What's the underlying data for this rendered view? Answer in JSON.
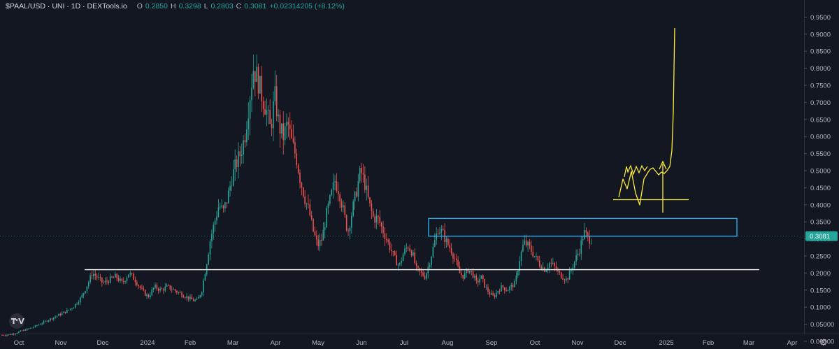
{
  "header": {
    "symbol": "$PAAL/USD · UNI · 1D · DEXTools.io",
    "o_label": "O",
    "o_value": "0.2850",
    "h_label": "H",
    "h_value": "0.3298",
    "l_label": "L",
    "l_value": "0.2803",
    "c_label": "C",
    "c_value": "0.3081",
    "change": "+0.02314205 (+8.12%)"
  },
  "icons": {
    "logo": "tradingview-logo-icon",
    "settings": "gear-icon"
  },
  "colors": {
    "background": "#131722",
    "up": "#26a69a",
    "down": "#ef5350",
    "annotation_yellow": "#ffeb3b",
    "annotation_box": "#29b6f6",
    "support_line": "#ffffff",
    "price_label": "#26a69a"
  },
  "chart_data": {
    "type": "candlestick",
    "x_labels": [
      "Oct",
      "Nov",
      "Dec",
      "2024",
      "Feb",
      "Mar",
      "Apr",
      "May",
      "Jun",
      "Jul",
      "Aug",
      "Sep",
      "Oct",
      "Nov",
      "Dec",
      "2025",
      "Feb",
      "Mar",
      "Apr"
    ],
    "y_ticks": [
      "0.9500",
      "0.9000",
      "0.8500",
      "0.8000",
      "0.7500",
      "0.7000",
      "0.6500",
      "0.6000",
      "0.5500",
      "0.5000",
      "0.4500",
      "0.4000",
      "0.3500",
      "0.3000",
      "0.2500",
      "0.2000",
      "0.1500",
      "0.1000",
      "0.05000",
      "0.00000",
      "-0.0500"
    ],
    "ylim": [
      -0.05,
      0.95
    ],
    "last_price": "0.3081",
    "trend_points": [
      [
        0,
        0.018
      ],
      [
        8,
        0.02
      ],
      [
        18,
        0.03
      ],
      [
        28,
        0.04
      ],
      [
        38,
        0.055
      ],
      [
        48,
        0.07
      ],
      [
        58,
        0.085
      ],
      [
        66,
        0.1
      ],
      [
        74,
        0.13
      ],
      [
        80,
        0.17
      ],
      [
        84,
        0.2
      ],
      [
        88,
        0.19
      ],
      [
        94,
        0.17
      ],
      [
        100,
        0.18
      ],
      [
        106,
        0.19
      ],
      [
        112,
        0.17
      ],
      [
        118,
        0.2
      ],
      [
        124,
        0.18
      ],
      [
        130,
        0.15
      ],
      [
        136,
        0.13
      ],
      [
        142,
        0.16
      ],
      [
        148,
        0.15
      ],
      [
        154,
        0.16
      ],
      [
        160,
        0.15
      ],
      [
        166,
        0.14
      ],
      [
        172,
        0.13
      ],
      [
        178,
        0.12
      ],
      [
        182,
        0.12
      ],
      [
        186,
        0.15
      ],
      [
        190,
        0.22
      ],
      [
        194,
        0.3
      ],
      [
        198,
        0.35
      ],
      [
        202,
        0.4
      ],
      [
        206,
        0.38
      ],
      [
        210,
        0.42
      ],
      [
        214,
        0.48
      ],
      [
        218,
        0.52
      ],
      [
        222,
        0.55
      ],
      [
        226,
        0.6
      ],
      [
        230,
        0.7
      ],
      [
        234,
        0.8
      ],
      [
        238,
        0.77
      ],
      [
        242,
        0.72
      ],
      [
        246,
        0.68
      ],
      [
        250,
        0.62
      ],
      [
        254,
        0.72
      ],
      [
        258,
        0.63
      ],
      [
        262,
        0.6
      ],
      [
        266,
        0.64
      ],
      [
        270,
        0.58
      ],
      [
        274,
        0.54
      ],
      [
        278,
        0.47
      ],
      [
        282,
        0.42
      ],
      [
        286,
        0.38
      ],
      [
        290,
        0.32
      ],
      [
        294,
        0.28
      ],
      [
        298,
        0.3
      ],
      [
        302,
        0.37
      ],
      [
        306,
        0.42
      ],
      [
        310,
        0.47
      ],
      [
        314,
        0.44
      ],
      [
        318,
        0.38
      ],
      [
        322,
        0.32
      ],
      [
        326,
        0.38
      ],
      [
        330,
        0.44
      ],
      [
        334,
        0.5
      ],
      [
        338,
        0.46
      ],
      [
        342,
        0.4
      ],
      [
        346,
        0.36
      ],
      [
        350,
        0.36
      ],
      [
        354,
        0.33
      ],
      [
        358,
        0.3
      ],
      [
        362,
        0.27
      ],
      [
        366,
        0.24
      ],
      [
        370,
        0.22
      ],
      [
        374,
        0.26
      ],
      [
        378,
        0.28
      ],
      [
        382,
        0.26
      ],
      [
        386,
        0.21
      ],
      [
        390,
        0.2
      ],
      [
        394,
        0.19
      ],
      [
        398,
        0.23
      ],
      [
        402,
        0.28
      ],
      [
        406,
        0.33
      ],
      [
        410,
        0.32
      ],
      [
        414,
        0.29
      ],
      [
        418,
        0.27
      ],
      [
        422,
        0.24
      ],
      [
        426,
        0.2
      ],
      [
        430,
        0.19
      ],
      [
        434,
        0.21
      ],
      [
        438,
        0.2
      ],
      [
        442,
        0.17
      ],
      [
        446,
        0.19
      ],
      [
        450,
        0.16
      ],
      [
        454,
        0.14
      ],
      [
        458,
        0.13
      ],
      [
        462,
        0.15
      ],
      [
        466,
        0.16
      ],
      [
        470,
        0.15
      ],
      [
        474,
        0.16
      ],
      [
        478,
        0.17
      ],
      [
        482,
        0.24
      ],
      [
        486,
        0.29
      ],
      [
        490,
        0.28
      ],
      [
        494,
        0.26
      ],
      [
        498,
        0.24
      ],
      [
        502,
        0.22
      ],
      [
        506,
        0.21
      ],
      [
        510,
        0.23
      ],
      [
        514,
        0.22
      ],
      [
        518,
        0.2
      ],
      [
        522,
        0.19
      ],
      [
        526,
        0.18
      ],
      [
        530,
        0.21
      ],
      [
        534,
        0.24
      ],
      [
        538,
        0.27
      ],
      [
        542,
        0.32
      ],
      [
        546,
        0.3
      ],
      [
        549,
        0.3
      ]
    ],
    "annotations": {
      "support_line": 0.21,
      "resistance_box": [
        0.308,
        0.36
      ],
      "yellow_range_line": 0.415
    }
  }
}
